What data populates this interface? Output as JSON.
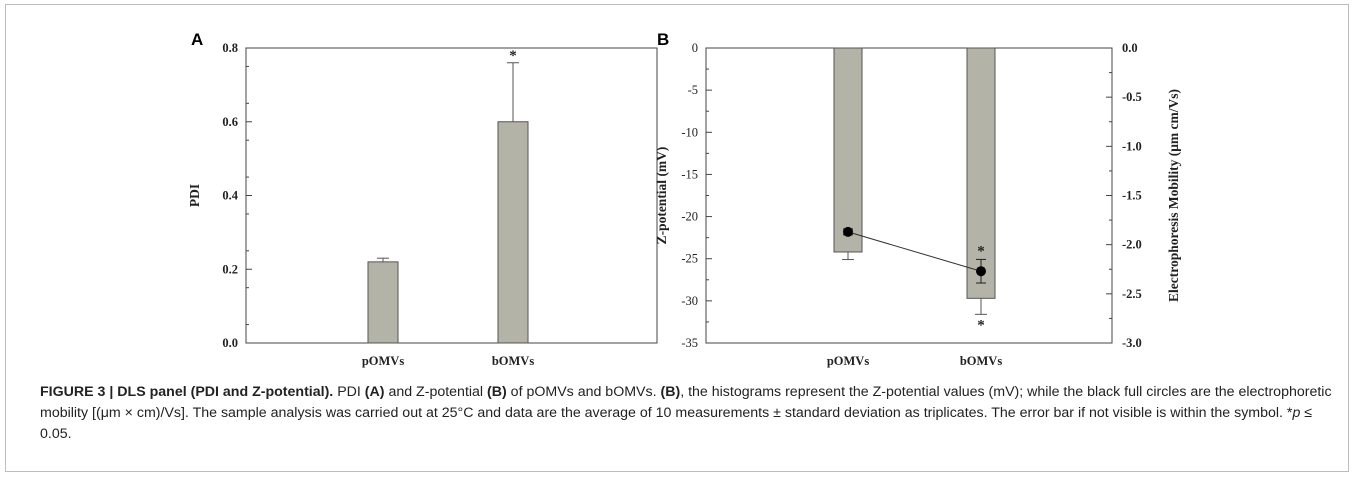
{
  "panels": {
    "a": {
      "letter": "A"
    },
    "b": {
      "letter": "B"
    }
  },
  "chart_data": [
    {
      "type": "bar",
      "categories": [
        "pOMVs",
        "bOMVs"
      ],
      "values": [
        0.22,
        0.6
      ],
      "errors": [
        0.01,
        0.16
      ],
      "significance": [
        "",
        "*"
      ],
      "title": "",
      "xlabel": "",
      "ylabel": "PDI",
      "ylim": [
        0.0,
        0.8
      ],
      "yticks": [
        "0.0",
        "0.2",
        "0.4",
        "0.6",
        "0.8"
      ],
      "bar_color": "#b3b3a8",
      "grid": false
    },
    {
      "type": "bar",
      "categories": [
        "pOMVs",
        "bOMVs"
      ],
      "series": [
        {
          "values": [
            -24.2,
            -29.7
          ],
          "errors": [
            0.9,
            1.9
          ],
          "significance": [
            "",
            "*"
          ],
          "axis": "left",
          "style": "bar"
        },
        {
          "values": [
            -1.87,
            -2.27
          ],
          "errors": [
            0.03,
            0.12
          ],
          "significance": [
            "",
            "*"
          ],
          "axis": "right",
          "style": "line-marker"
        }
      ],
      "title": "",
      "xlabel": "",
      "ylabel": "Z-potential (mV)",
      "ylim": [
        -35,
        0
      ],
      "yticks": [
        "0",
        "-5",
        "-10",
        "-15",
        "-20",
        "-25",
        "-30",
        "-35"
      ],
      "ylabel_right": "Electrophoresis Mobility (μm cm/Vs)",
      "ylim_right": [
        -3.0,
        0.0
      ],
      "yticks_right": [
        "0.0",
        "-0.5",
        "-1.0",
        "-1.5",
        "-2.0",
        "-2.5",
        "-3.0"
      ],
      "bar_color": "#b3b3a8",
      "grid": false
    }
  ],
  "caption": {
    "label": "FIGURE 3 | DLS panel (PDI and Z-potential).",
    "t1": " PDI ",
    "b1": "(A)",
    "t2": " and Z-potential ",
    "b2": "(B)",
    "t3": " of pOMVs and bOMVs. ",
    "b3": "(B)",
    "t4": ", the histograms represent the Z-potential values (mV); while the black full circles are the electrophoretic mobility [(μm × cm)/Vs]. The sample analysis was carried out at 25°C and data are the average of 10 measurements ± standard deviation as triplicates. The error bar if not visible is within the symbol. *",
    "p": "p",
    "t5": " ≤ 0.05."
  }
}
